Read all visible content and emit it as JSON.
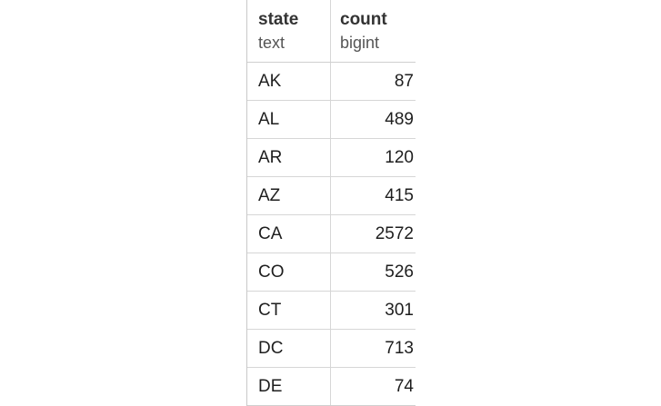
{
  "table": {
    "columns": [
      {
        "name": "state",
        "type": "text"
      },
      {
        "name": "count",
        "type": "bigint"
      }
    ],
    "rows": [
      {
        "state": "AK",
        "count": "87"
      },
      {
        "state": "AL",
        "count": "489"
      },
      {
        "state": "AR",
        "count": "120"
      },
      {
        "state": "AZ",
        "count": "415"
      },
      {
        "state": "CA",
        "count": "2572"
      },
      {
        "state": "CO",
        "count": "526"
      },
      {
        "state": "CT",
        "count": "301"
      },
      {
        "state": "DC",
        "count": "713"
      },
      {
        "state": "DE",
        "count": "74"
      }
    ]
  }
}
